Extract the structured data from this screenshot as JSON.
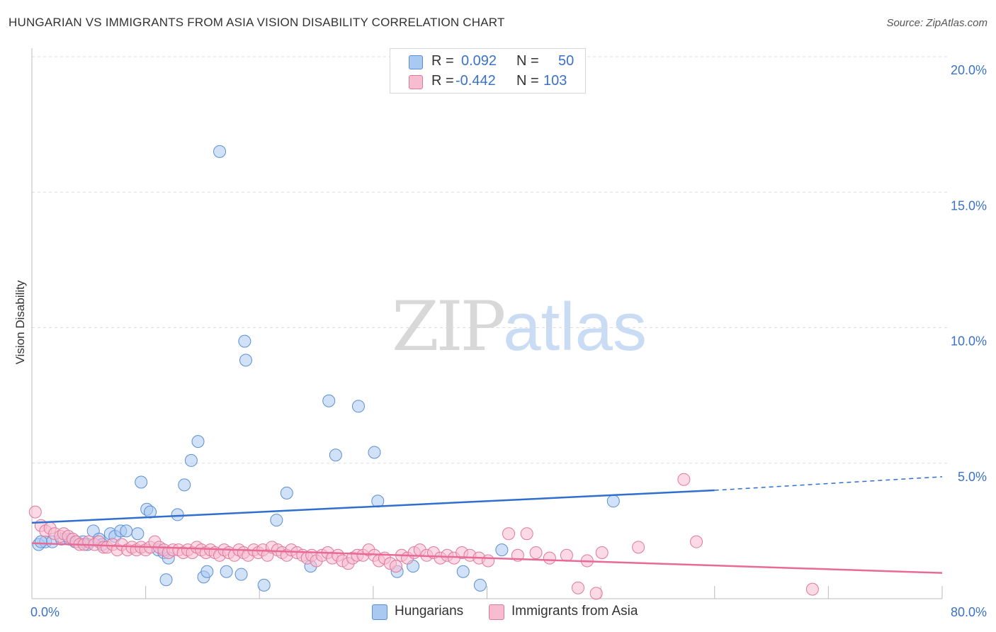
{
  "title": "HUNGARIAN VS IMMIGRANTS FROM ASIA VISION DISABILITY CORRELATION CHART",
  "source": "Source: ZipAtlas.com",
  "watermark": {
    "zip": "ZIP",
    "atlas": "atlas"
  },
  "legend": {
    "rows": [
      {
        "r_label": "R =",
        "r_value": "0.092",
        "n_label": "N =",
        "n_value": "50",
        "color": "#a9c8f2",
        "border": "#5b8fd4"
      },
      {
        "r_label": "R =",
        "r_value": "-0.442",
        "n_label": "N =",
        "n_value": "103",
        "color": "#f7bcd0",
        "border": "#e0789c"
      }
    ]
  },
  "bottom_legend": [
    {
      "label": "Hungarians",
      "color": "#a9c8f2",
      "border": "#5b8fd4"
    },
    {
      "label": "Immigrants from Asia",
      "color": "#f7bcd0",
      "border": "#e0789c"
    }
  ],
  "chart_data": {
    "type": "scatter",
    "title": "HUNGARIAN VS IMMIGRANTS FROM ASIA VISION DISABILITY CORRELATION CHART",
    "xlabel": "",
    "ylabel": "Vision Disability",
    "xlim": [
      0,
      80
    ],
    "ylim": [
      0,
      20
    ],
    "x_tick_labels": [
      "0.0%",
      "80.0%"
    ],
    "y_ticks": [
      5,
      10,
      15,
      20
    ],
    "y_tick_labels": [
      "5.0%",
      "10.0%",
      "15.0%",
      "20.0%"
    ],
    "grid": "horizontal dashed",
    "legend_position": "top-center",
    "series": [
      {
        "name": "Hungarians",
        "color": "#a9c8f2",
        "border": "#5b8fd4",
        "trend_color": "#2f6fd0",
        "trend": {
          "x0": 0,
          "y0": 2.8,
          "x1": 60,
          "y1": 4.0,
          "solid_until": 60,
          "dash_to": 80,
          "y_end": 4.5
        },
        "points": [
          [
            0.6,
            2.0
          ],
          [
            1.2,
            2.1
          ],
          [
            1.8,
            2.1
          ],
          [
            2.6,
            2.2
          ],
          [
            3.3,
            2.2
          ],
          [
            3.8,
            2.1
          ],
          [
            4.5,
            2.1
          ],
          [
            4.9,
            2.0
          ],
          [
            5.4,
            2.5
          ],
          [
            5.9,
            2.2
          ],
          [
            6.2,
            2.0
          ],
          [
            6.9,
            2.4
          ],
          [
            7.3,
            2.3
          ],
          [
            7.8,
            2.5
          ],
          [
            8.3,
            2.5
          ],
          [
            9.3,
            2.4
          ],
          [
            9.6,
            4.3
          ],
          [
            10.1,
            3.3
          ],
          [
            10.4,
            3.2
          ],
          [
            11.1,
            1.8
          ],
          [
            11.6,
            1.7
          ],
          [
            11.8,
            0.7
          ],
          [
            12.0,
            1.5
          ],
          [
            12.8,
            3.1
          ],
          [
            13.4,
            4.2
          ],
          [
            14.0,
            5.1
          ],
          [
            14.6,
            5.8
          ],
          [
            15.1,
            0.8
          ],
          [
            15.4,
            1.0
          ],
          [
            16.5,
            16.5
          ],
          [
            17.1,
            1.0
          ],
          [
            18.4,
            0.9
          ],
          [
            18.7,
            9.5
          ],
          [
            18.8,
            8.8
          ],
          [
            20.4,
            0.5
          ],
          [
            21.5,
            2.9
          ],
          [
            22.4,
            3.9
          ],
          [
            24.5,
            1.2
          ],
          [
            26.1,
            7.3
          ],
          [
            26.7,
            5.3
          ],
          [
            28.7,
            7.1
          ],
          [
            30.1,
            5.4
          ],
          [
            30.4,
            3.6
          ],
          [
            32.1,
            1.0
          ],
          [
            33.5,
            1.2
          ],
          [
            37.9,
            1.0
          ],
          [
            39.4,
            0.5
          ],
          [
            41.3,
            1.8
          ],
          [
            51.1,
            3.6
          ],
          [
            0.8,
            2.1
          ]
        ]
      },
      {
        "name": "Immigrants from Asia",
        "color": "#f7bcd0",
        "border": "#e0789c",
        "trend_color": "#e96a95",
        "trend": {
          "x0": 0,
          "y0": 2.05,
          "x1": 80,
          "y1": 0.95
        },
        "points": [
          [
            0.3,
            3.2
          ],
          [
            0.8,
            2.7
          ],
          [
            1.2,
            2.5
          ],
          [
            1.6,
            2.6
          ],
          [
            2.0,
            2.4
          ],
          [
            2.5,
            2.3
          ],
          [
            2.8,
            2.4
          ],
          [
            3.2,
            2.3
          ],
          [
            3.6,
            2.2
          ],
          [
            3.9,
            2.1
          ],
          [
            4.2,
            2.0
          ],
          [
            4.6,
            2.0
          ],
          [
            5.0,
            2.1
          ],
          [
            5.5,
            2.0
          ],
          [
            5.9,
            2.1
          ],
          [
            6.3,
            1.9
          ],
          [
            6.6,
            1.9
          ],
          [
            7.1,
            2.0
          ],
          [
            7.5,
            1.8
          ],
          [
            7.9,
            2.0
          ],
          [
            8.4,
            1.8
          ],
          [
            8.8,
            1.9
          ],
          [
            9.2,
            1.8
          ],
          [
            9.6,
            1.9
          ],
          [
            10.0,
            1.8
          ],
          [
            10.4,
            1.9
          ],
          [
            10.8,
            2.1
          ],
          [
            11.2,
            1.9
          ],
          [
            11.6,
            1.8
          ],
          [
            12.0,
            1.7
          ],
          [
            12.4,
            1.8
          ],
          [
            12.9,
            1.8
          ],
          [
            13.3,
            1.7
          ],
          [
            13.7,
            1.8
          ],
          [
            14.1,
            1.7
          ],
          [
            14.5,
            1.9
          ],
          [
            14.9,
            1.8
          ],
          [
            15.3,
            1.7
          ],
          [
            15.7,
            1.8
          ],
          [
            16.1,
            1.7
          ],
          [
            16.5,
            1.6
          ],
          [
            16.9,
            1.8
          ],
          [
            17.3,
            1.7
          ],
          [
            17.8,
            1.6
          ],
          [
            18.2,
            1.8
          ],
          [
            18.6,
            1.7
          ],
          [
            19.0,
            1.6
          ],
          [
            19.5,
            1.8
          ],
          [
            19.9,
            1.7
          ],
          [
            20.3,
            1.8
          ],
          [
            20.7,
            1.6
          ],
          [
            21.1,
            1.9
          ],
          [
            21.6,
            1.8
          ],
          [
            22.0,
            1.7
          ],
          [
            22.4,
            1.6
          ],
          [
            22.8,
            1.8
          ],
          [
            23.3,
            1.7
          ],
          [
            23.8,
            1.6
          ],
          [
            24.2,
            1.5
          ],
          [
            24.6,
            1.6
          ],
          [
            25.0,
            1.4
          ],
          [
            25.5,
            1.6
          ],
          [
            26.0,
            1.7
          ],
          [
            26.4,
            1.5
          ],
          [
            26.9,
            1.6
          ],
          [
            27.3,
            1.4
          ],
          [
            27.8,
            1.3
          ],
          [
            28.2,
            1.5
          ],
          [
            28.6,
            1.6
          ],
          [
            29.1,
            1.6
          ],
          [
            29.6,
            1.8
          ],
          [
            30.1,
            1.6
          ],
          [
            30.5,
            1.4
          ],
          [
            31.0,
            1.5
          ],
          [
            31.5,
            1.3
          ],
          [
            32.0,
            1.2
          ],
          [
            32.5,
            1.6
          ],
          [
            33.0,
            1.5
          ],
          [
            33.6,
            1.7
          ],
          [
            34.1,
            1.8
          ],
          [
            34.7,
            1.6
          ],
          [
            35.3,
            1.7
          ],
          [
            35.9,
            1.5
          ],
          [
            36.5,
            1.6
          ],
          [
            37.1,
            1.5
          ],
          [
            37.8,
            1.7
          ],
          [
            38.5,
            1.6
          ],
          [
            39.3,
            1.5
          ],
          [
            40.1,
            1.4
          ],
          [
            41.9,
            2.4
          ],
          [
            42.7,
            1.6
          ],
          [
            43.5,
            2.4
          ],
          [
            44.3,
            1.7
          ],
          [
            45.5,
            1.5
          ],
          [
            47.0,
            1.6
          ],
          [
            48.8,
            1.4
          ],
          [
            50.1,
            1.7
          ],
          [
            53.3,
            1.9
          ],
          [
            57.3,
            4.4
          ],
          [
            58.4,
            2.1
          ],
          [
            68.6,
            0.35
          ],
          [
            48.0,
            0.4
          ],
          [
            49.6,
            0.2
          ]
        ]
      }
    ]
  }
}
